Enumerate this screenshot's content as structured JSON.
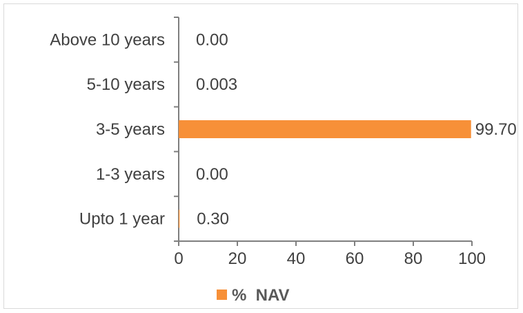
{
  "chart_data": {
    "type": "bar",
    "orientation": "horizontal",
    "categories": [
      "Upto 1 year",
      "1-3 years",
      "3-5 years",
      "5-10 years",
      "Above 10 years"
    ],
    "series": [
      {
        "name": "%  NAV",
        "values": [
          0.3,
          0.0,
          99.7,
          0.003,
          0.0
        ],
        "value_labels": [
          "0.30",
          "0.00",
          "99.70",
          "0.003",
          "0.00"
        ],
        "color": "#F79038"
      }
    ],
    "xlim": [
      0,
      100
    ],
    "xticks": [
      0,
      20,
      40,
      60,
      80,
      100
    ],
    "grid": false,
    "legend_position": "bottom"
  }
}
